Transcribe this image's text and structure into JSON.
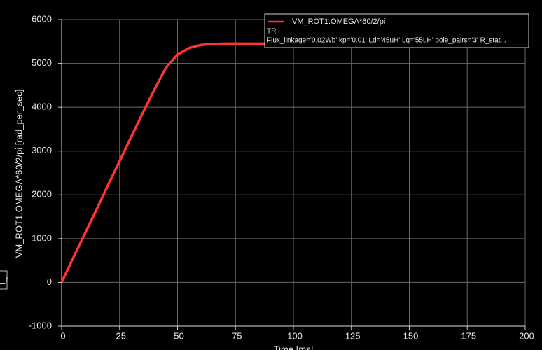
{
  "chart_data": {
    "type": "line",
    "x_label": "Time [ms]",
    "y_label": "VM_ROT1.OMEGA*60/2/pi [rad_per_sec]",
    "x": [
      0,
      5,
      10,
      15,
      20,
      25,
      30,
      35,
      40,
      45,
      50,
      55,
      60,
      65,
      70,
      75,
      80,
      85,
      90
    ],
    "series": [
      {
        "name": "VM_ROT1.OMEGA*60/2/pi",
        "color": "#ff3333",
        "values": [
          0,
          560,
          1110,
          1660,
          2220,
          2770,
          3320,
          3870,
          4400,
          4900,
          5200,
          5350,
          5420,
          5440,
          5450,
          5450,
          5450,
          5450,
          5450
        ]
      }
    ],
    "legend_lines": [
      "TR",
      "Flux_linkage='0.02Wb' kp='0.01' Ld='45uH' Lq='55uH' pole_pairs='3' R_stat..."
    ],
    "side_tab": "_r",
    "xlim": [
      0,
      200
    ],
    "xticks": [
      0,
      25,
      50,
      75,
      100,
      125,
      150,
      175,
      200
    ],
    "ylim": [
      -1000,
      6000
    ],
    "yticks": [
      -1000,
      0,
      1000,
      2000,
      3000,
      4000,
      5000,
      6000
    ],
    "grid": true
  }
}
